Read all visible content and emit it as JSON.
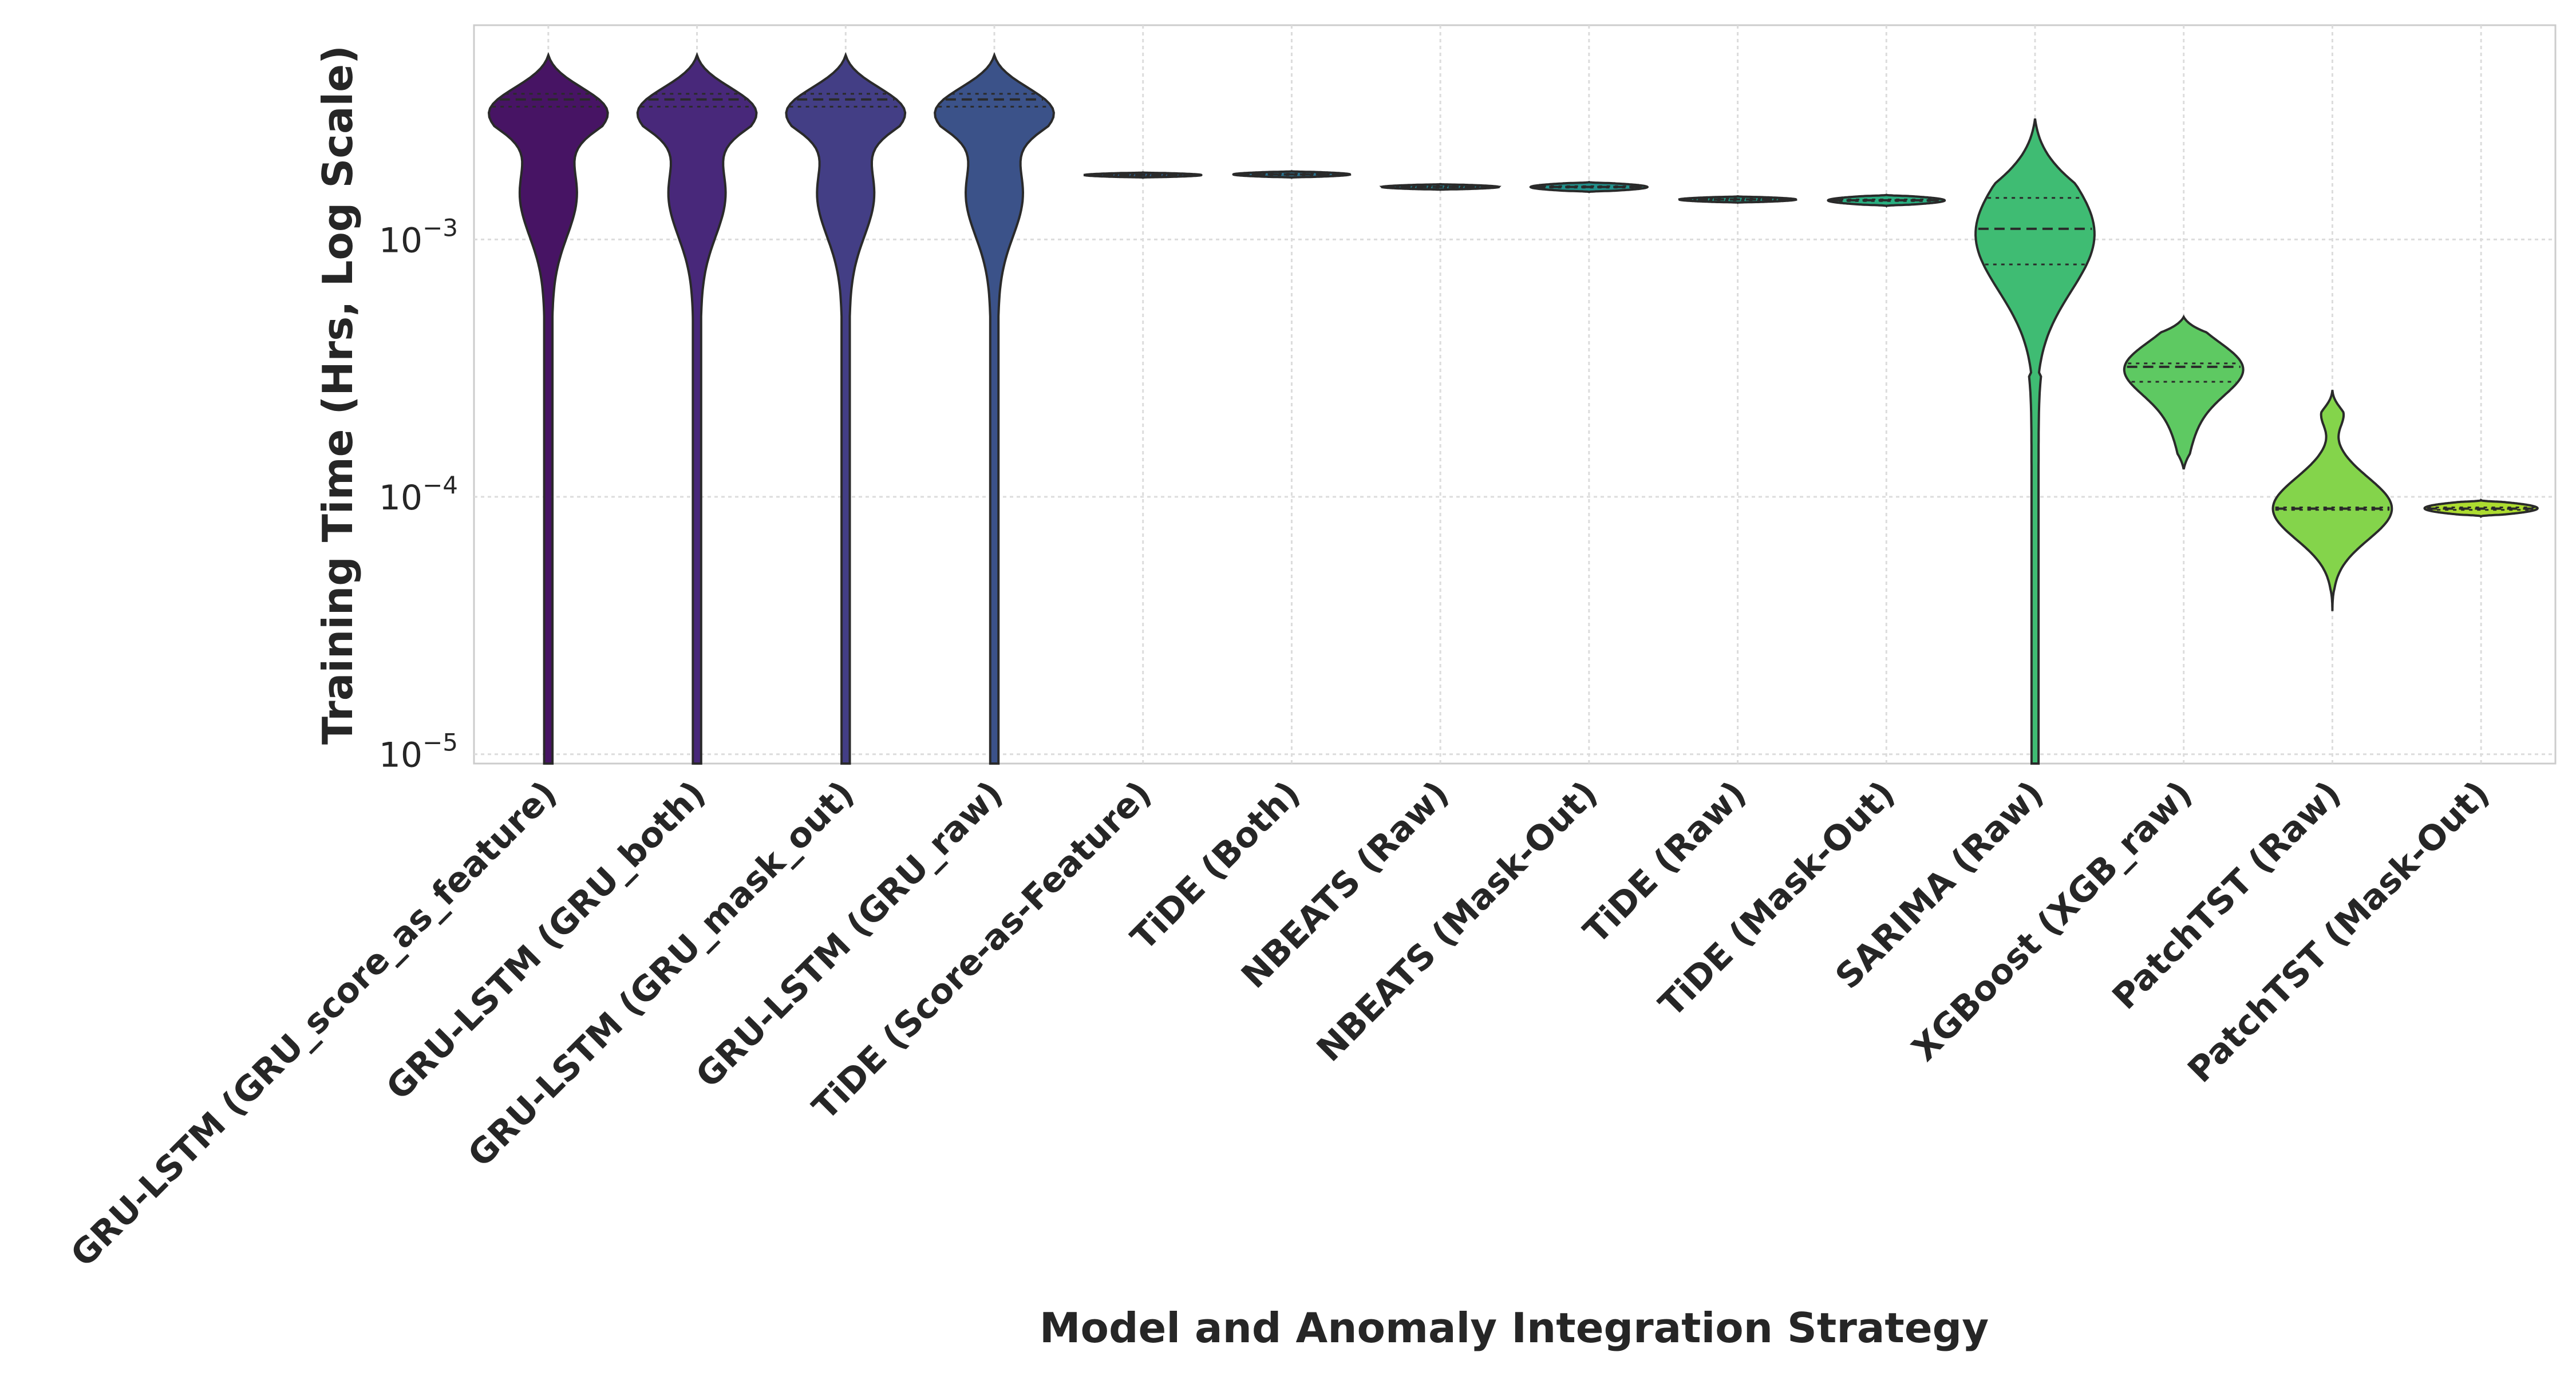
{
  "chart_data": {
    "type": "violin",
    "title": "",
    "xlabel": "Model and Anomaly Integration Strategy",
    "ylabel": "Training Time (Hrs, Log Scale)",
    "yscale": "log",
    "ylim": [
      9.2e-06,
      0.0068
    ],
    "yticks": [
      {
        "value": 1e-05,
        "base": "10",
        "exp": "−5"
      },
      {
        "value": 0.0001,
        "base": "10",
        "exp": "−4"
      },
      {
        "value": 0.001,
        "base": "10",
        "exp": "−3"
      }
    ],
    "grid": true,
    "inner": "quartile",
    "categories": [
      "GRU-LSTM (GRU_score_as_feature)",
      "GRU-LSTM (GRU_both)",
      "GRU-LSTM (GRU_mask_out)",
      "GRU-LSTM (GRU_raw)",
      "TiDE (Score-as-Feature)",
      "TiDE (Both)",
      "NBEATS (Raw)",
      "NBEATS (Mask-Out)",
      "TiDE (Raw)",
      "TiDE (Mask-Out)",
      "SARIMA (Raw)",
      "XGBoost (XGB_raw)",
      "PatchTST (Raw)",
      "PatchTST (Mask-Out)"
    ],
    "colors": [
      "#471464",
      "#48287a",
      "#433e85",
      "#3b5289",
      "#33638d",
      "#2c728e",
      "#26828e",
      "#21918c",
      "#1fa188",
      "#28ae80",
      "#3fbc73",
      "#5ec962",
      "#84d44b",
      "#addc30"
    ],
    "violins": [
      {
        "max": 0.0052,
        "q1": 0.00328,
        "median": 0.0035,
        "q3": 0.00368,
        "min": 9.2e-06,
        "shape": "gru",
        "halfwidth": 0.4
      },
      {
        "max": 0.0052,
        "q1": 0.00328,
        "median": 0.0035,
        "q3": 0.00368,
        "min": 9.2e-06,
        "shape": "gru",
        "halfwidth": 0.4
      },
      {
        "max": 0.0052,
        "q1": 0.00328,
        "median": 0.0035,
        "q3": 0.00368,
        "min": 9.2e-06,
        "shape": "gru",
        "halfwidth": 0.4
      },
      {
        "max": 0.0052,
        "q1": 0.00328,
        "median": 0.0035,
        "q3": 0.00368,
        "min": 9.2e-06,
        "shape": "gru",
        "halfwidth": 0.4
      },
      {
        "max": 0.00182,
        "q1": 0.00177,
        "median": 0.00178,
        "q3": 0.00179,
        "min": 0.00174,
        "shape": "flat",
        "halfwidth": 0.4
      },
      {
        "max": 0.00184,
        "q1": 0.00178,
        "median": 0.00179,
        "q3": 0.0018,
        "min": 0.00174,
        "shape": "flat",
        "halfwidth": 0.4
      },
      {
        "max": 0.00164,
        "q1": 0.00159,
        "median": 0.0016,
        "q3": 0.00161,
        "min": 0.00156,
        "shape": "flat",
        "halfwidth": 0.4
      },
      {
        "max": 0.00167,
        "q1": 0.00159,
        "median": 0.0016,
        "q3": 0.00161,
        "min": 0.00153,
        "shape": "flat",
        "halfwidth": 0.4
      },
      {
        "max": 0.00147,
        "q1": 0.00142,
        "median": 0.00143,
        "q3": 0.00144,
        "min": 0.00139,
        "shape": "flat",
        "halfwidth": 0.4
      },
      {
        "max": 0.00149,
        "q1": 0.00141,
        "median": 0.00142,
        "q3": 0.00143,
        "min": 0.00135,
        "shape": "flat",
        "halfwidth": 0.4
      },
      {
        "max": 0.00295,
        "q1": 0.0008,
        "median": 0.0011,
        "q3": 0.00145,
        "min": 9.2e-06,
        "shape": "sarima",
        "halfwidth": 0.4
      },
      {
        "max": 0.0005,
        "q1": 0.00028,
        "median": 0.00032,
        "q3": 0.00033,
        "min": 0.000128,
        "shape": "xgb",
        "halfwidth": 0.4
      },
      {
        "max": 0.00026,
        "q1": 8.9e-05,
        "median": 9e-05,
        "q3": 9.1e-05,
        "min": 3.6e-05,
        "shape": "patch_raw",
        "halfwidth": 0.4
      },
      {
        "max": 9.7e-05,
        "q1": 8.9e-05,
        "median": 9e-05,
        "q3": 9.1e-05,
        "min": 8.4e-05,
        "shape": "patch_mask",
        "halfwidth": 0.4
      }
    ]
  }
}
